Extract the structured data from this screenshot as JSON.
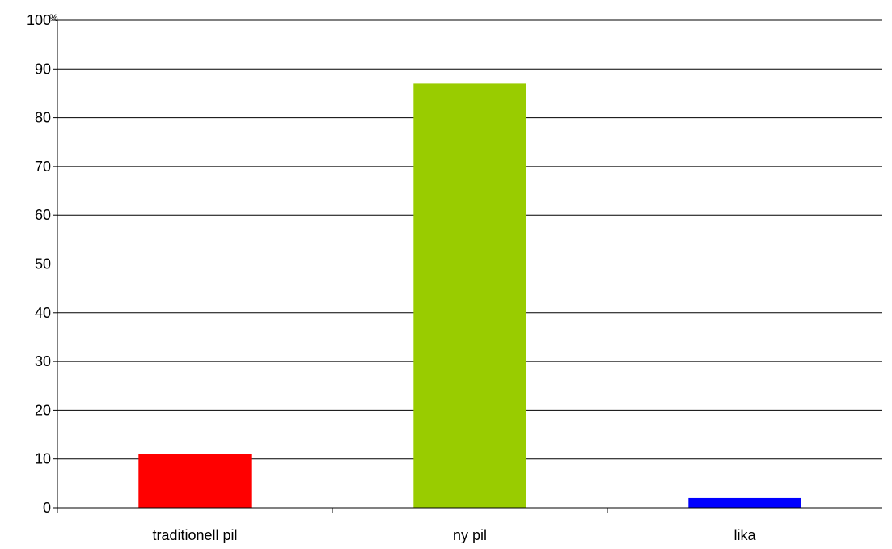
{
  "chart_data": {
    "type": "bar",
    "categories": [
      "traditionell pil",
      "ny pil",
      "lika"
    ],
    "values": [
      11,
      87,
      2
    ],
    "colors": [
      "#ff0000",
      "#99cc00",
      "#0000ff"
    ],
    "ylim": [
      0,
      100
    ],
    "yticks": [
      0,
      10,
      20,
      30,
      40,
      50,
      60,
      70,
      80,
      90,
      100
    ],
    "y_unit": "%",
    "grid": true,
    "legend": "none"
  }
}
